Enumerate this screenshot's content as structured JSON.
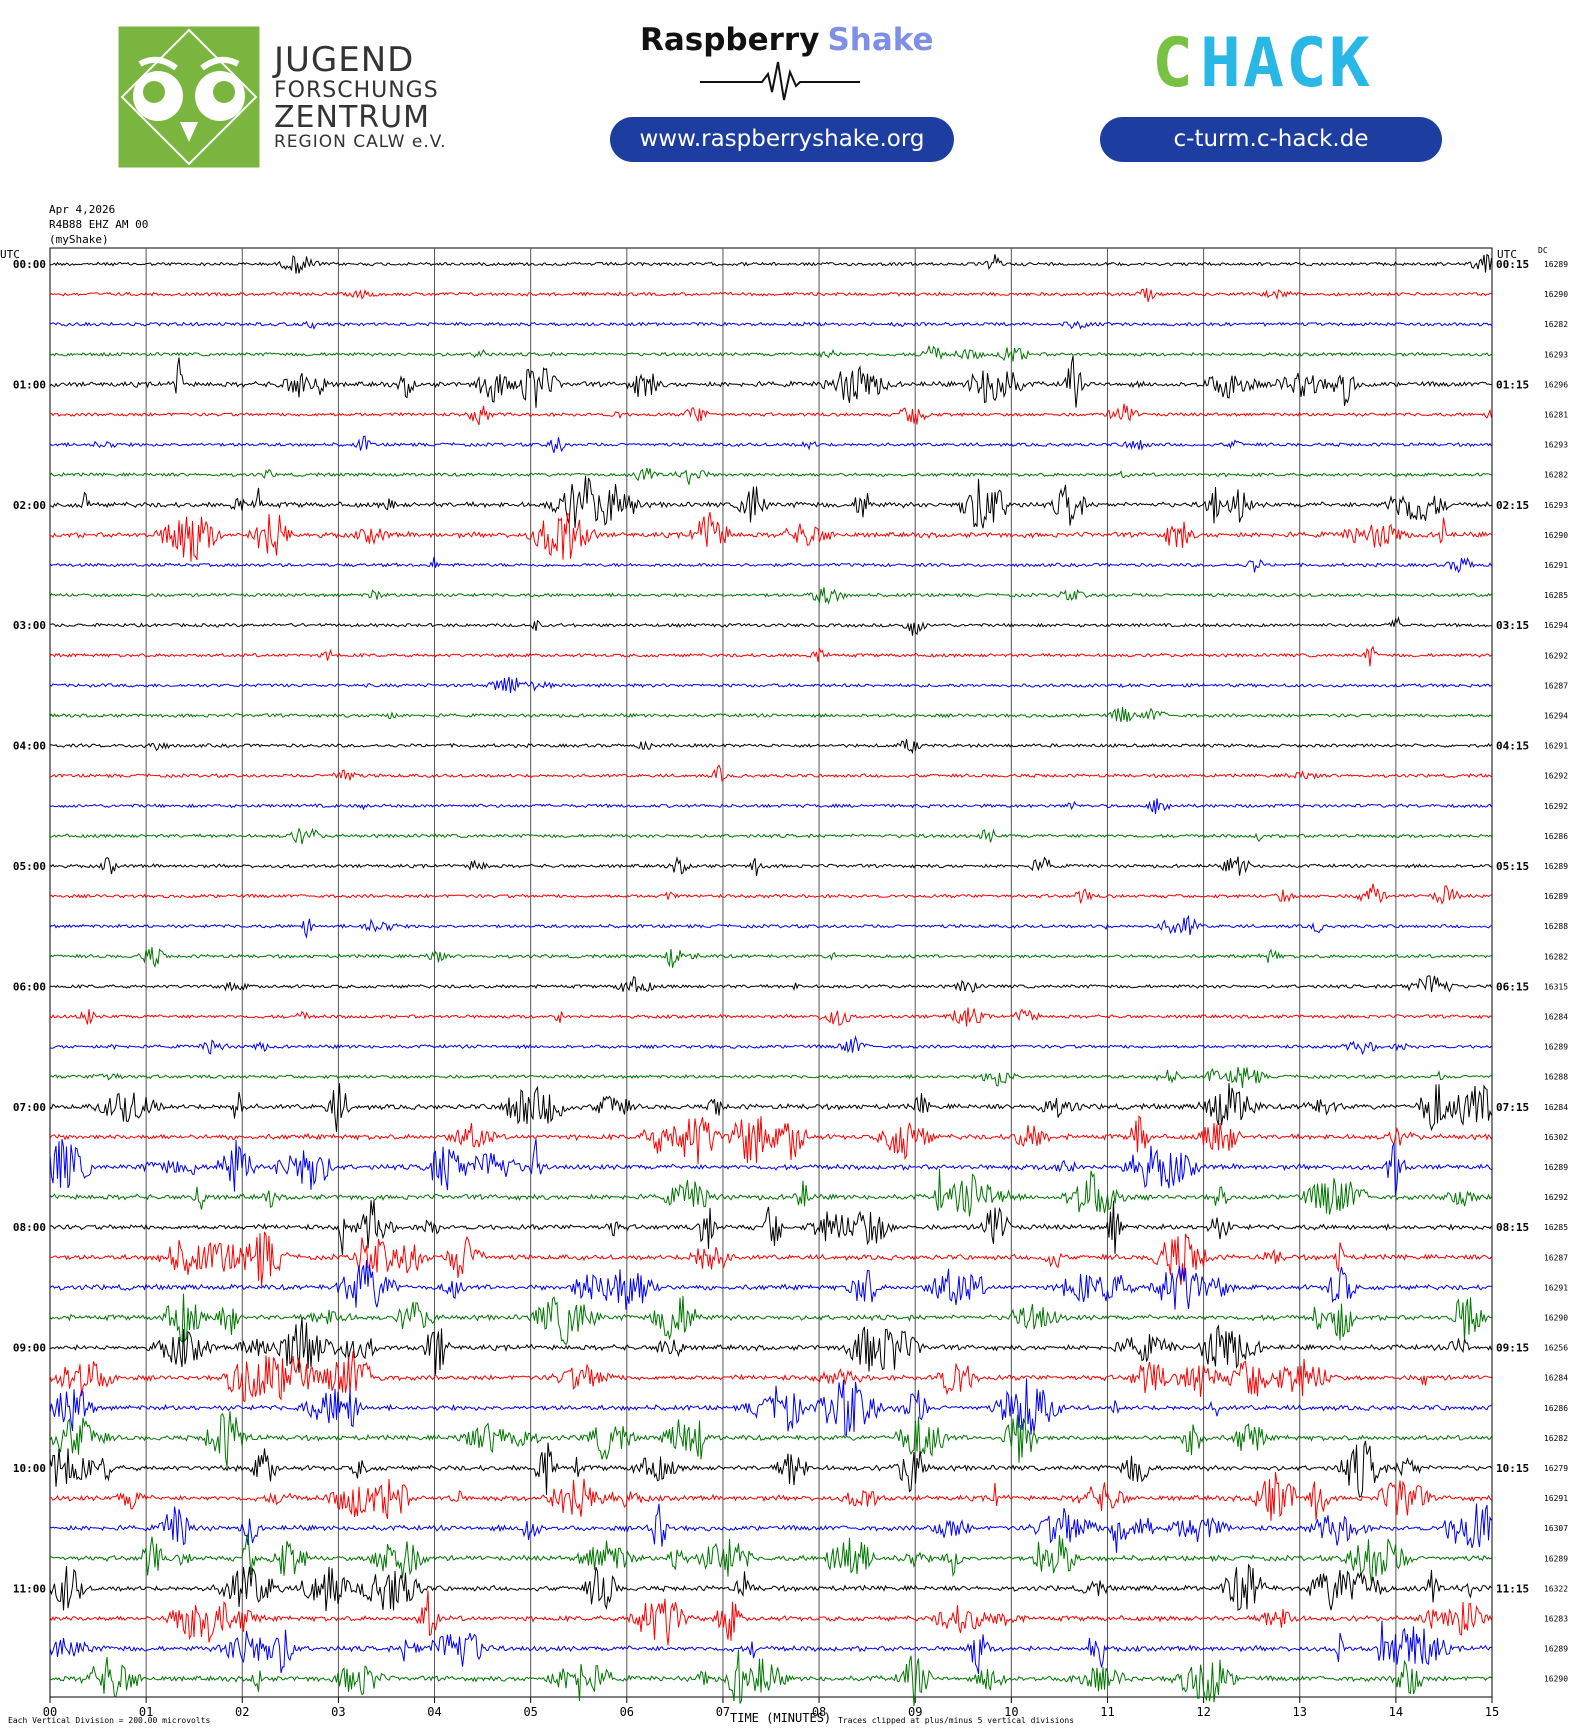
{
  "header": {
    "jfz_lines": [
      "JUGEND",
      "FORSCHUNGS",
      "ZENTRUM",
      "REGION CALW e.V."
    ],
    "rs_brand_a": "Raspberry",
    "rs_brand_b": "Shake",
    "rs_url": "www.raspberryshake.org",
    "chack_name": "CHACK",
    "chack_url": "c-turm.c-hack.de"
  },
  "meta": {
    "date": "Apr 4,2026",
    "station": "R4B88 EHZ AM 00",
    "source": "(myShake)",
    "utc_left": "UTC",
    "utc_right": "UTC",
    "dc": "DC"
  },
  "footer": {
    "left": "Each Vertical Division =  200.00 microvolts",
    "xlabel": "TIME (MINUTES)",
    "right": "Traces clipped at plus/minus 5 vertical divisions"
  },
  "colors": {
    "black": "#000000",
    "red": "#ff0000",
    "blue": "#0000ff",
    "green": "#007800",
    "grid": "#555555"
  },
  "chart_data": {
    "type": "line",
    "xlabel": "TIME (MINUTES)",
    "xlim": [
      0,
      15
    ],
    "x_ticks": [
      "00",
      "01",
      "02",
      "03",
      "04",
      "05",
      "06",
      "07",
      "08",
      "09",
      "10",
      "11",
      "12",
      "13",
      "14",
      "15"
    ],
    "trace_minutes": 15,
    "left_time_labels": [
      "00:00",
      "01:00",
      "02:00",
      "03:00",
      "04:00",
      "05:00",
      "06:00",
      "07:00",
      "08:00",
      "09:00",
      "10:00",
      "11:00"
    ],
    "right_time_labels": [
      "00:15",
      "01:15",
      "02:15",
      "03:15",
      "04:15",
      "05:15",
      "06:15",
      "07:15",
      "08:15",
      "09:15",
      "10:15",
      "11:15"
    ],
    "trace_colors": [
      "black",
      "red",
      "blue",
      "green"
    ],
    "dc_offsets": [
      16289,
      16290,
      16282,
      16293,
      16296,
      16281,
      16293,
      16282,
      16293,
      16290,
      16291,
      16285,
      16294,
      16292,
      16287,
      16294,
      16291,
      16292,
      16292,
      16286,
      16289,
      16289,
      16288,
      16282,
      16315,
      16284,
      16289,
      16288,
      16284,
      16302,
      16289,
      16292,
      16285,
      16287,
      16291,
      16290,
      16256,
      16284,
      16286,
      16282,
      16279,
      16291,
      16307,
      16289,
      16322,
      16283,
      16289,
      16290
    ],
    "activity_level": [
      1,
      1,
      1,
      2,
      3,
      2,
      2,
      2,
      3,
      3,
      1,
      1,
      1,
      1,
      1,
      1,
      1,
      1,
      1,
      1,
      2,
      2,
      2,
      2,
      2,
      2,
      2,
      2,
      3,
      3,
      3,
      3,
      3,
      3,
      3,
      3,
      3,
      3,
      3,
      3,
      3,
      3,
      3,
      3,
      3,
      3,
      3,
      3
    ],
    "vertical_division_uV": 200,
    "clip_divisions": 5
  }
}
